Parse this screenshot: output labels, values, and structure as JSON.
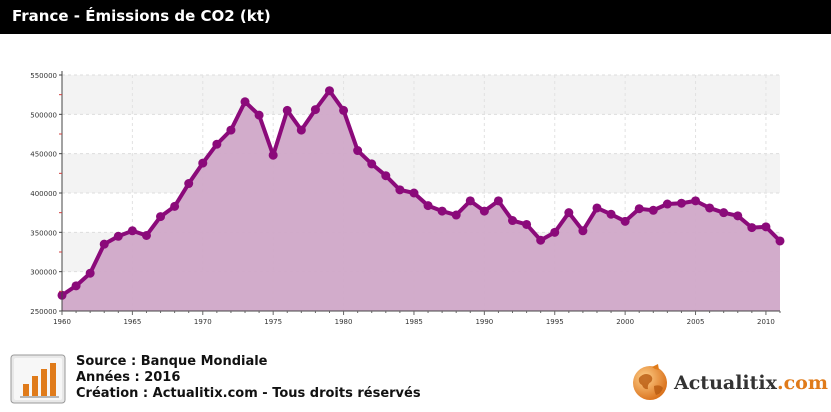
{
  "header": {
    "title": "France - Émissions de CO2 (kt)"
  },
  "colors": {
    "header_bg": "#000000",
    "area_fill": "#d0a8c8",
    "line": "#8b0a7a",
    "band": "#f3f3f3",
    "accent": "#e07b1a"
  },
  "chart_data": {
    "type": "area",
    "title": "France - Émissions de CO2 (kt)",
    "xlabel": "",
    "ylabel": "",
    "xlim": [
      1960,
      2011
    ],
    "ylim": [
      250000,
      550000
    ],
    "yticks": [
      250000,
      300000,
      350000,
      400000,
      450000,
      500000,
      550000
    ],
    "ytick_labels": [
      "250000",
      "300000",
      "350000",
      "400000",
      "450000",
      "500000",
      "550000"
    ],
    "xticks": [
      1960,
      1965,
      1970,
      1975,
      1980,
      1985,
      1990,
      1995,
      2000,
      2005,
      2010
    ],
    "xtick_labels": [
      "1960",
      "1965",
      "1970",
      "1975",
      "1980",
      "1985",
      "1990",
      "1995",
      "2000",
      "2005",
      "2010"
    ],
    "grid": true,
    "legend": "none",
    "series": [
      {
        "x": [
          1960,
          1961,
          1962,
          1963,
          1964,
          1965,
          1966,
          1967,
          1968,
          1969,
          1970,
          1971,
          1972,
          1973,
          1974,
          1975,
          1976,
          1977,
          1978,
          1979,
          1980,
          1981,
          1982,
          1983,
          1984,
          1985,
          1986,
          1987,
          1988,
          1989,
          1990,
          1991,
          1992,
          1993,
          1994,
          1995,
          1996,
          1997,
          1998,
          1999,
          2000,
          2001,
          2002,
          2003,
          2004,
          2005,
          2006,
          2007,
          2008,
          2009,
          2010,
          2011
        ],
        "values": [
          270000,
          282000,
          298000,
          335000,
          345000,
          352000,
          346000,
          370000,
          383000,
          412000,
          438000,
          462000,
          480000,
          516000,
          499000,
          448000,
          505000,
          480000,
          506000,
          530000,
          505000,
          454000,
          437000,
          422000,
          404000,
          400000,
          384000,
          377000,
          372000,
          390000,
          377000,
          390000,
          365000,
          360000,
          340000,
          350000,
          375000,
          352000,
          381000,
          373000,
          364000,
          380000,
          378000,
          386000,
          387000,
          390000,
          381000,
          375000,
          371000,
          356000,
          357000,
          339000
        ]
      }
    ]
  },
  "footer": {
    "source": "Source : Banque Mondiale",
    "annees": "Années : 2016",
    "creation": "Création : Actualitix.com - Tous droits réservés"
  },
  "brand": {
    "name": "Actualitix",
    "suffix": ".com"
  }
}
